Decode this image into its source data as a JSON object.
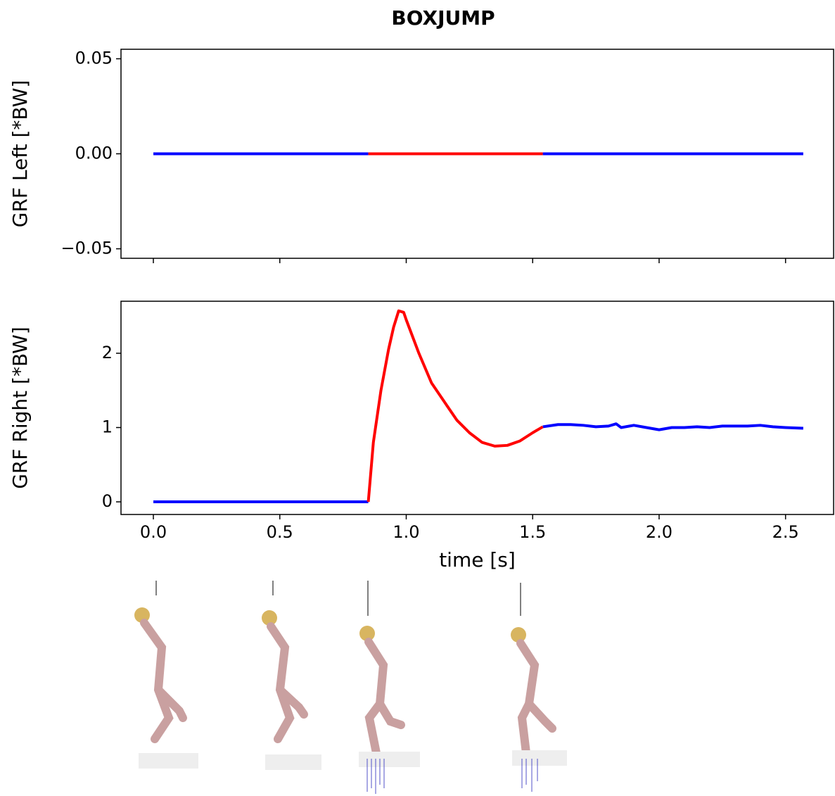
{
  "title": "BOXJUMP",
  "chart_data": [
    {
      "type": "line",
      "ylabel": "GRF Left [*BW]",
      "x": [
        0,
        0.85,
        1.2,
        1.54,
        2.57
      ],
      "series": [
        {
          "color": "#0000ff",
          "values": [
            0,
            0,
            null,
            0,
            0
          ]
        },
        {
          "color": "#ff0000",
          "values": [
            null,
            0,
            0,
            0,
            null
          ]
        }
      ],
      "xlim": [
        -0.128,
        2.69
      ],
      "xticks": [
        {
          "value": 0,
          "label": "0.0"
        },
        0.5,
        {
          "value": 1,
          "label": "1.0"
        },
        1.5,
        {
          "value": 2,
          "label": "2.0"
        },
        2.5
      ],
      "show_xtick_labels": false,
      "ylim": [
        -0.055,
        0.055
      ],
      "yticks": [
        {
          "value": -0.05,
          "label": "−0.05"
        },
        {
          "value": 0,
          "label": "0.00"
        },
        0.05
      ]
    },
    {
      "type": "line",
      "ylabel": "GRF Right [*BW]",
      "xlabel": "time [s]",
      "x": [
        0,
        0.85,
        0.87,
        0.9,
        0.93,
        0.95,
        0.97,
        0.99,
        1.0,
        1.05,
        1.1,
        1.15,
        1.2,
        1.25,
        1.3,
        1.35,
        1.4,
        1.45,
        1.5,
        1.54,
        1.6,
        1.65,
        1.7,
        1.75,
        1.8,
        1.83,
        1.85,
        1.9,
        1.95,
        2.0,
        2.05,
        2.1,
        2.15,
        2.2,
        2.25,
        2.3,
        2.35,
        2.4,
        2.45,
        2.5,
        2.57
      ],
      "series": [
        {
          "color": "#0000ff",
          "values": [
            0,
            0,
            null,
            null,
            null,
            null,
            null,
            null,
            null,
            null,
            null,
            null,
            null,
            null,
            null,
            null,
            null,
            null,
            null,
            1.01,
            1.04,
            1.04,
            1.03,
            1.01,
            1.02,
            1.05,
            1.0,
            1.03,
            1.0,
            0.97,
            1.0,
            1.0,
            1.01,
            1.0,
            1.02,
            1.02,
            1.02,
            1.03,
            1.01,
            1.0,
            0.99
          ]
        },
        {
          "color": "#ff0000",
          "values": [
            null,
            0,
            0.8,
            1.5,
            2.05,
            2.35,
            2.57,
            2.55,
            2.45,
            2.0,
            1.6,
            1.35,
            1.1,
            0.93,
            0.8,
            0.75,
            0.76,
            0.82,
            0.93,
            1.01,
            null,
            null,
            null,
            null,
            null,
            null,
            null,
            null,
            null,
            null,
            null,
            null,
            null,
            null,
            null,
            null,
            null,
            null,
            null,
            null,
            null
          ]
        }
      ],
      "xlim": [
        -0.128,
        2.69
      ],
      "xticks": [
        {
          "value": 0,
          "label": "0.0"
        },
        0.5,
        {
          "value": 1,
          "label": "1.0"
        },
        1.5,
        {
          "value": 2,
          "label": "2.0"
        },
        2.5
      ],
      "show_xtick_labels": true,
      "ylim": [
        -0.17,
        2.7
      ],
      "yticks": [
        0,
        1,
        2
      ]
    }
  ]
}
